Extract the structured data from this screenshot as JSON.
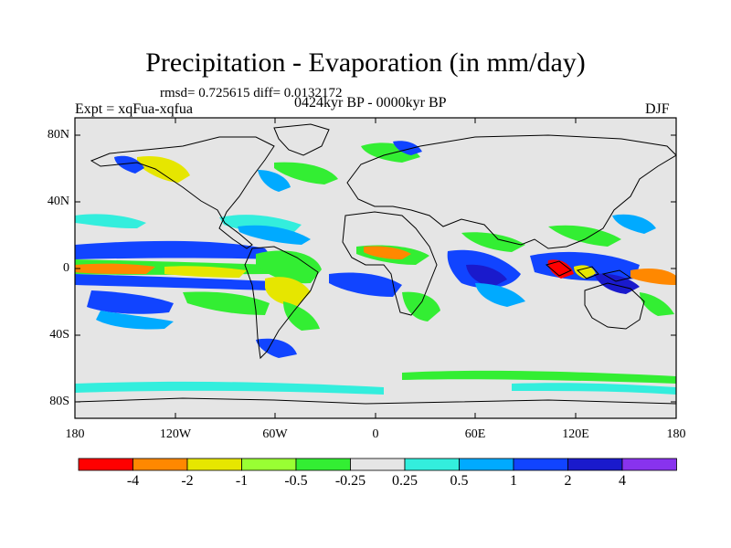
{
  "title": "Precipitation - Evaporation (in mm/day)",
  "stats": "rmsd= 0.725615 diff= 0.0132172",
  "experiment": "Expt = xqFua-xqfua",
  "period": "0424kyr BP - 0000kyr BP",
  "season": "DJF",
  "lat_labels": [
    "80N",
    "40N",
    "0",
    "40S",
    "80S"
  ],
  "lon_labels": [
    "180",
    "120W",
    "60W",
    "0",
    "60E",
    "120E",
    "180"
  ],
  "colorbar": {
    "colors": [
      "#ff0000",
      "#ff8800",
      "#e6e600",
      "#99ff33",
      "#33ee33",
      "#e5e5e5",
      "#33eedd",
      "#00aaff",
      "#1144ff",
      "#1a1acc",
      "#8833ee"
    ],
    "labels": [
      "-4",
      "-2",
      "-1",
      "-0.5",
      "-0.25",
      "0.25",
      "0.5",
      "1",
      "2",
      "4"
    ]
  },
  "colors": {
    "ocean_neutral": "#e5e5e5",
    "coast": "#000000"
  }
}
